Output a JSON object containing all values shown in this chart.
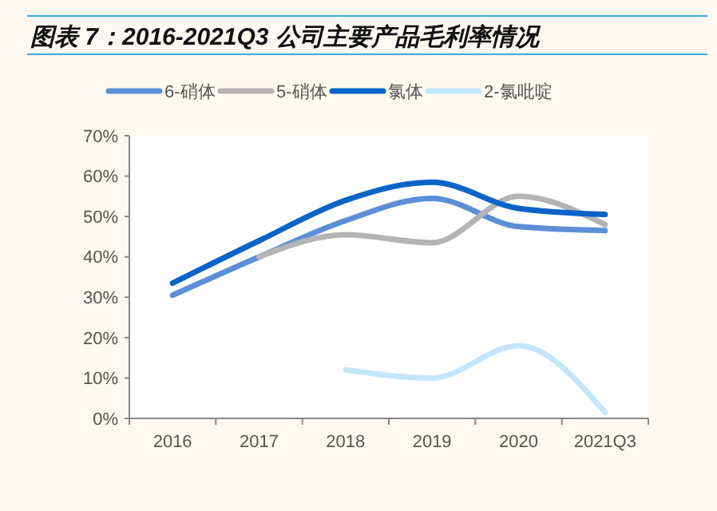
{
  "chart_data": {
    "type": "line",
    "title": "图表 7：2016-2021Q3 公司主要产品毛利率情况",
    "categories": [
      "2016",
      "2017",
      "2018",
      "2019",
      "2020",
      "2021Q3"
    ],
    "series": [
      {
        "name": "6-硝体",
        "color": "#5b8fd6",
        "values": [
          30.5,
          40,
          49,
          54.5,
          47.5,
          46.5
        ]
      },
      {
        "name": "5-硝体",
        "color": "#b4b4b4",
        "values": [
          null,
          40,
          45.5,
          43.5,
          55,
          48
        ]
      },
      {
        "name": "氯体",
        "color": "#0a64c8",
        "values": [
          33.5,
          44,
          54,
          58.5,
          52,
          50.5
        ]
      },
      {
        "name": "2-氯吡啶",
        "color": "#c4e6fa",
        "values": [
          null,
          null,
          12,
          10,
          18,
          1.5
        ]
      }
    ],
    "ylim": [
      0,
      70
    ],
    "yticks": [
      {
        "value": 0,
        "label": "0%"
      },
      {
        "value": 10,
        "label": "10%"
      },
      {
        "value": 20,
        "label": "20%"
      },
      {
        "value": 30,
        "label": "30%"
      },
      {
        "value": 40,
        "label": "40%"
      },
      {
        "value": 50,
        "label": "50%"
      },
      {
        "value": 60,
        "label": "60%"
      },
      {
        "value": 70,
        "label": "70%"
      }
    ],
    "grid": false,
    "legend": "top",
    "marker": "none",
    "line_style": "solid"
  }
}
